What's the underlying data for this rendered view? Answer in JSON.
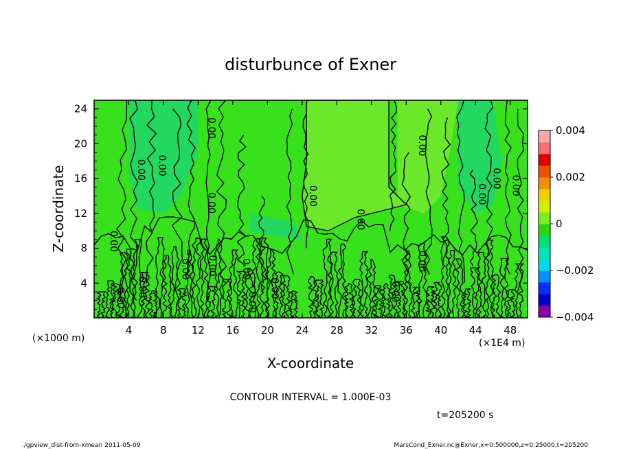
{
  "chart_data": {
    "type": "heatmap",
    "subtype": "filled-contour",
    "title": "disturbunce of Exner",
    "xlabel": "X-coordinate",
    "ylabel": "Z-coordinate",
    "x_unit_left": "(×1000 m)",
    "x_unit_right": "(×1E4 m)",
    "x_ticks": [
      "4",
      "8",
      "12",
      "16",
      "20",
      "24",
      "28",
      "32",
      "36",
      "40",
      "44",
      "48"
    ],
    "x_tick_values": [
      4,
      8,
      12,
      16,
      20,
      24,
      28,
      32,
      36,
      40,
      44,
      48
    ],
    "xlim": [
      0,
      50
    ],
    "y_ticks": [
      "4",
      "8",
      "12",
      "16",
      "20",
      "24"
    ],
    "y_tick_values": [
      4,
      8,
      12,
      16,
      20,
      24
    ],
    "ylim": [
      0,
      25
    ],
    "contour_interval_text": "CONTOUR INTERVAL = 1.000E-03",
    "time_text": "t=205200 s",
    "contour_labels": [
      {
        "text": "0.00",
        "x": 2.2,
        "z": 8.8
      },
      {
        "text": "0.00",
        "x": 3.0,
        "z": 2.3
      },
      {
        "text": "0.00",
        "x": 5.5,
        "z": 3.5
      },
      {
        "text": "0.00",
        "x": 5.4,
        "z": 17.0
      },
      {
        "text": "0.00",
        "x": 7.8,
        "z": 17.5
      },
      {
        "text": "0.00",
        "x": 10.5,
        "z": 5.6
      },
      {
        "text": "0.00",
        "x": 13.5,
        "z": 13.2
      },
      {
        "text": "0.00",
        "x": 13.6,
        "z": 6.0
      },
      {
        "text": "0.00",
        "x": 13.5,
        "z": 21.8
      },
      {
        "text": "0.00",
        "x": 17.5,
        "z": 5.6
      },
      {
        "text": "0.00",
        "x": 18.2,
        "z": 1.8
      },
      {
        "text": "0.00",
        "x": 20.8,
        "z": 3.4
      },
      {
        "text": "0.00",
        "x": 25.2,
        "z": 14.0
      },
      {
        "text": "0.00",
        "x": 30.7,
        "z": 11.3
      },
      {
        "text": "0.00",
        "x": 34.7,
        "z": 3.0
      },
      {
        "text": "0.00",
        "x": 37.8,
        "z": 6.5
      },
      {
        "text": "0.00",
        "x": 37.8,
        "z": 19.8
      },
      {
        "text": "0.00",
        "x": 44.7,
        "z": 14.2
      },
      {
        "text": "0.00",
        "x": 46.4,
        "z": 16.0
      },
      {
        "text": "0.00",
        "x": 48.6,
        "z": 15.2
      }
    ],
    "colorbar": {
      "ticks": [
        "0.004",
        "0.002",
        "0",
        "−0.002",
        "−0.004"
      ],
      "tick_values": [
        0.004,
        0.002,
        0,
        -0.002,
        -0.004
      ],
      "range": [
        -0.004,
        0.004
      ],
      "colors": [
        "#8800aa",
        "#0000c8",
        "#0030ff",
        "#0090ff",
        "#00d8f0",
        "#00e6b4",
        "#00e070",
        "#28d80c",
        "#7cee1c",
        "#d0f000",
        "#f0d000",
        "#f09000",
        "#f05000",
        "#e00000",
        "#f87070",
        "#f8a8a8"
      ]
    },
    "field_colors": {
      "background": "#37e11c",
      "positive_region": "#6ce82a",
      "negative_region": "#22d860"
    }
  },
  "footer": {
    "left": "./gpview_dist-from-xmean  2011-05-09",
    "right": "MarsCond_Exner.nc@Exner,x=0:500000,z=0:25000,t=205200"
  }
}
